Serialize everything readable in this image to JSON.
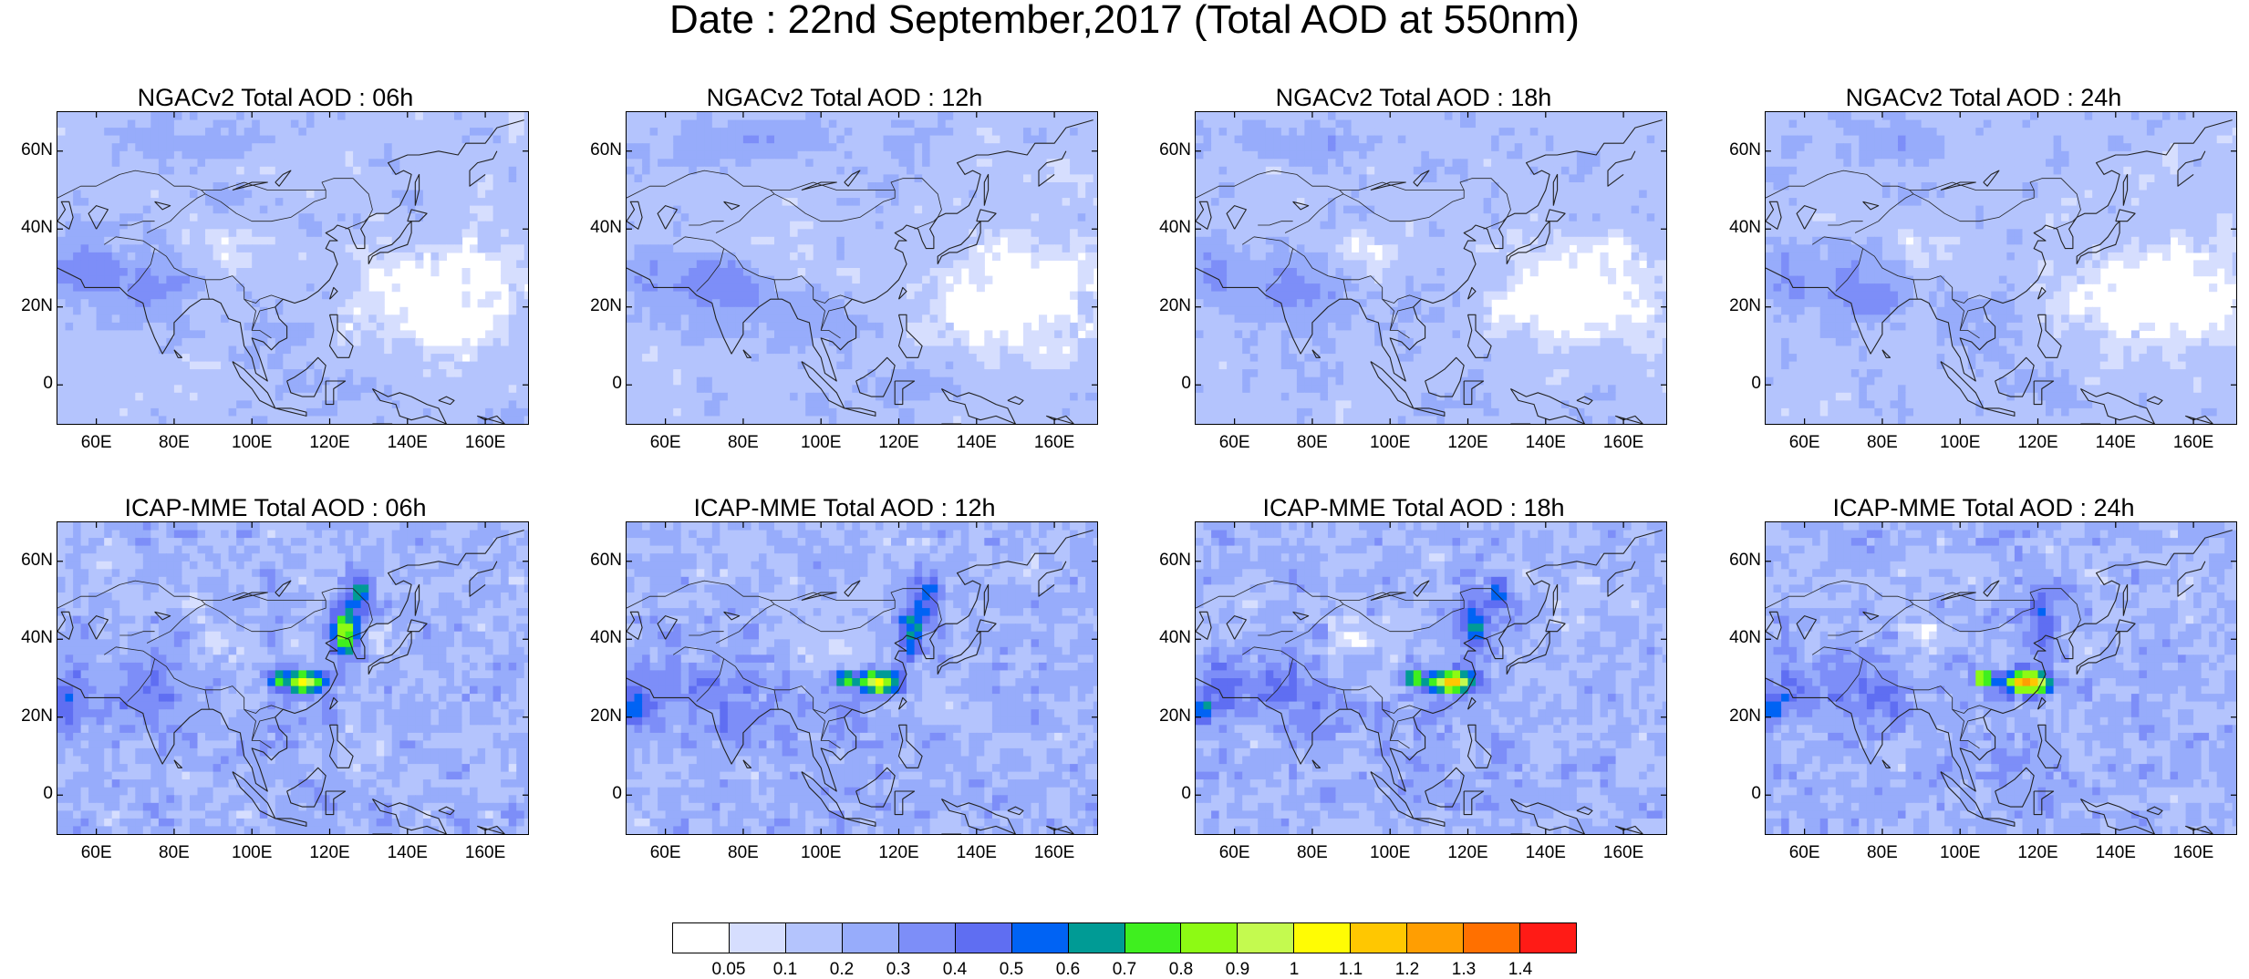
{
  "title": "Date : 22nd September,2017 (Total AOD at 550nm)",
  "y_ticks": [
    "60N",
    "40N",
    "20N",
    "0"
  ],
  "x_ticks": [
    "60E",
    "80E",
    "100E",
    "120E",
    "140E",
    "160E"
  ],
  "panels": [
    {
      "title": "NGACv2 Total AOD : 06h",
      "model": "NGACv2",
      "hour": "06h"
    },
    {
      "title": "NGACv2 Total AOD : 12h",
      "model": "NGACv2",
      "hour": "12h"
    },
    {
      "title": "NGACv2 Total AOD : 18h",
      "model": "NGACv2",
      "hour": "18h"
    },
    {
      "title": "NGACv2 Total AOD : 24h",
      "model": "NGACv2",
      "hour": "24h"
    },
    {
      "title": "ICAP-MME Total AOD : 06h",
      "model": "ICAP-MME",
      "hour": "06h"
    },
    {
      "title": "ICAP-MME Total AOD : 12h",
      "model": "ICAP-MME",
      "hour": "12h"
    },
    {
      "title": "ICAP-MME Total AOD : 18h",
      "model": "ICAP-MME",
      "hour": "18h"
    },
    {
      "title": "ICAP-MME Total AOD : 24h",
      "model": "ICAP-MME",
      "hour": "24h"
    }
  ],
  "colorbar": {
    "labels": [
      "0.05",
      "0.1",
      "0.2",
      "0.3",
      "0.4",
      "0.5",
      "0.6",
      "0.7",
      "0.8",
      "0.9",
      "1",
      "1.1",
      "1.2",
      "1.3",
      "1.4"
    ],
    "colors": [
      "#ffffff",
      "#d6defe",
      "#b4c4fd",
      "#97acfb",
      "#7d8ef8",
      "#5f6ef2",
      "#0063f4",
      "#009b95",
      "#3fef1f",
      "#8dfa14",
      "#c4fa4f",
      "#fffc04",
      "#ffc701",
      "#ff9e02",
      "#ff7000",
      "#ff1b16"
    ]
  }
}
